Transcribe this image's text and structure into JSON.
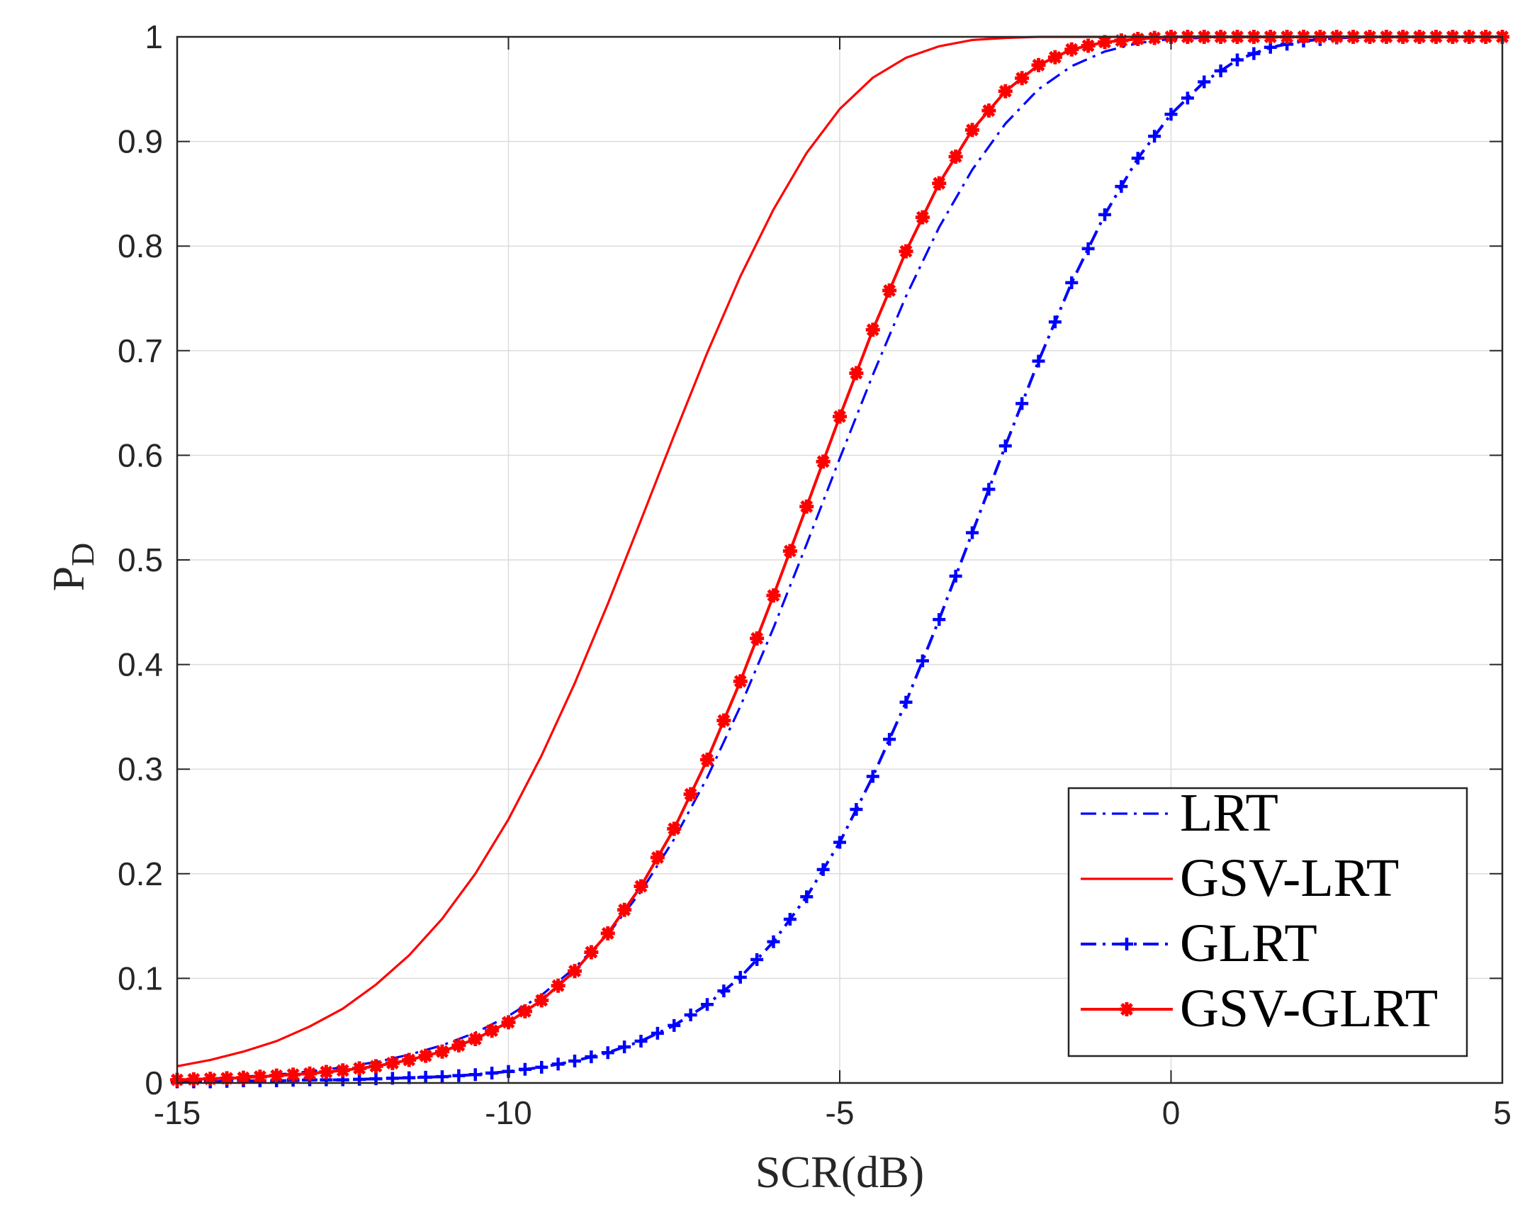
{
  "chart_data": {
    "type": "line",
    "title": "",
    "xlabel": "SCR(dB)",
    "ylabel_main": "P",
    "ylabel_sub": "D",
    "xlim": [
      -15,
      5
    ],
    "ylim": [
      0,
      1
    ],
    "grid": true,
    "legend_position": "bottom-right",
    "xticks": [
      -15,
      -10,
      -5,
      0,
      5
    ],
    "xtick_labels": [
      "-15",
      "-10",
      "-5",
      "0",
      "5"
    ],
    "yticks": [
      0,
      0.1,
      0.2,
      0.3,
      0.4,
      0.5,
      0.6,
      0.7,
      0.8,
      0.9,
      1
    ],
    "ytick_labels": [
      "0",
      "0.1",
      "0.2",
      "0.3",
      "0.4",
      "0.5",
      "0.6",
      "0.7",
      "0.8",
      "0.9",
      "1"
    ],
    "x": [
      -15,
      -14.5,
      -14,
      -13.5,
      -13,
      -12.5,
      -12,
      -11.5,
      -11,
      -10.5,
      -10,
      -9.5,
      -9,
      -8.5,
      -8,
      -7.5,
      -7,
      -6.5,
      -6,
      -5.5,
      -5,
      -4.5,
      -4,
      -3.5,
      -3,
      -2.5,
      -2,
      -1.5,
      -1,
      -0.5,
      0,
      0.5,
      1,
      1.5,
      2,
      2.5,
      3,
      3.5,
      4,
      4.5,
      5
    ],
    "series": [
      {
        "name": "LRT",
        "color": "#0000ff",
        "style": "dashdot",
        "marker": "none",
        "values": [
          0.003,
          0.004,
          0.006,
          0.008,
          0.011,
          0.015,
          0.02,
          0.027,
          0.036,
          0.048,
          0.064,
          0.084,
          0.11,
          0.142,
          0.183,
          0.233,
          0.292,
          0.36,
          0.435,
          0.515,
          0.597,
          0.677,
          0.752,
          0.818,
          0.873,
          0.917,
          0.95,
          0.972,
          0.986,
          0.994,
          0.998,
          0.999,
          1,
          1,
          1,
          1,
          1,
          1,
          1,
          1,
          1
        ]
      },
      {
        "name": "GSV-LRT",
        "color": "#ff0000",
        "style": "solid",
        "marker": "none",
        "values": [
          0.016,
          0.022,
          0.03,
          0.04,
          0.054,
          0.071,
          0.094,
          0.122,
          0.157,
          0.2,
          0.252,
          0.313,
          0.382,
          0.458,
          0.538,
          0.619,
          0.698,
          0.771,
          0.835,
          0.889,
          0.931,
          0.961,
          0.98,
          0.991,
          0.997,
          0.999,
          1,
          1,
          1,
          1,
          1,
          1,
          1,
          1,
          1,
          1,
          1,
          1,
          1,
          1,
          1
        ]
      },
      {
        "name": "GLRT",
        "color": "#0000ff",
        "style": "dashdot",
        "marker": "plus",
        "values": [
          0.001,
          0.001,
          0.002,
          0.002,
          0.003,
          0.003,
          0.004,
          0.005,
          0.006,
          0.008,
          0.011,
          0.015,
          0.021,
          0.029,
          0.04,
          0.055,
          0.075,
          0.101,
          0.135,
          0.178,
          0.23,
          0.293,
          0.364,
          0.443,
          0.526,
          0.609,
          0.69,
          0.765,
          0.83,
          0.884,
          0.926,
          0.957,
          0.978,
          0.99,
          0.996,
          0.999,
          1,
          1,
          1,
          1,
          1
        ]
      },
      {
        "name": "GSV-GLRT",
        "color": "#ff0000",
        "style": "solid",
        "marker": "star",
        "values": [
          0.003,
          0.004,
          0.005,
          0.007,
          0.009,
          0.012,
          0.016,
          0.022,
          0.03,
          0.042,
          0.058,
          0.079,
          0.107,
          0.143,
          0.188,
          0.243,
          0.309,
          0.384,
          0.466,
          0.551,
          0.637,
          0.72,
          0.795,
          0.86,
          0.911,
          0.948,
          0.973,
          0.988,
          0.995,
          0.998,
          1,
          1,
          1,
          1,
          1,
          1,
          1,
          1,
          1,
          1,
          1
        ]
      }
    ]
  }
}
